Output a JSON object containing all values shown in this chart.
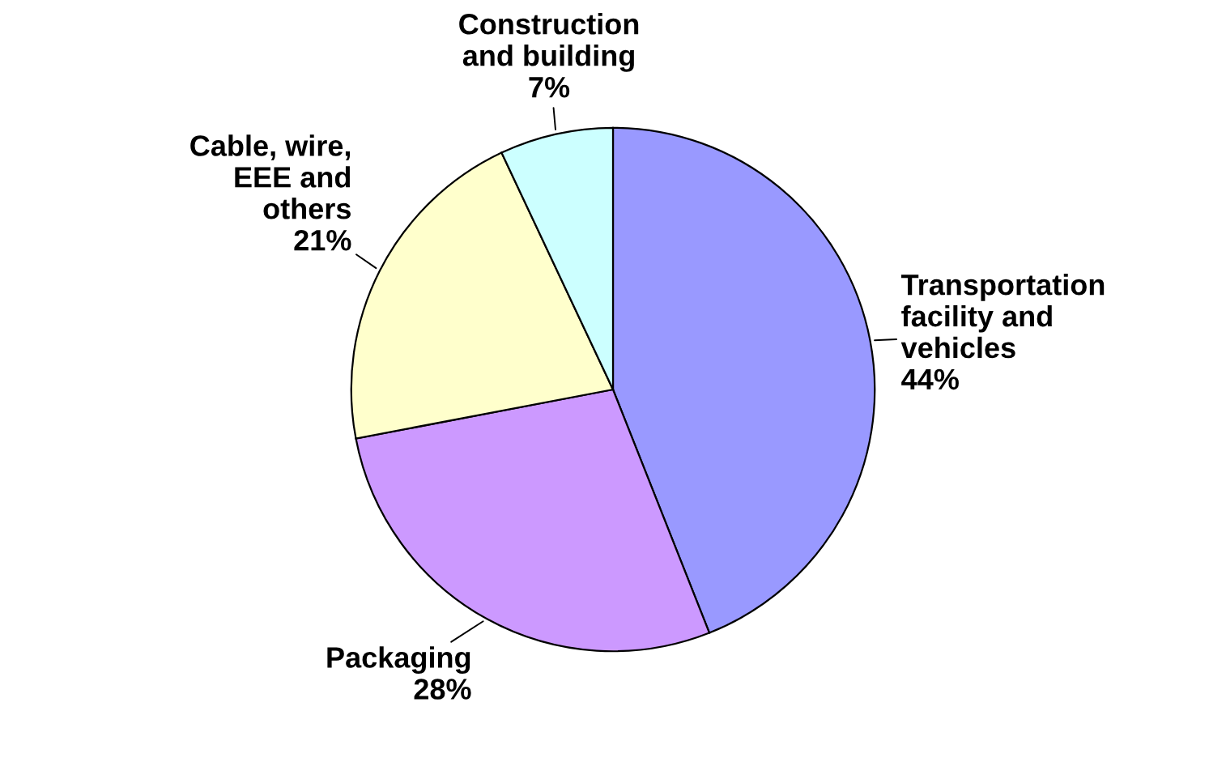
{
  "chart_data": {
    "type": "pie",
    "categories": [
      "Transportation\nfacility and\nvehicles",
      "Packaging",
      "Cable, wire,\nEEE and\nothers",
      "Construction\nand building"
    ],
    "values": [
      44,
      28,
      21,
      7
    ],
    "value_labels": [
      "44%",
      "28%",
      "21%",
      "7%"
    ],
    "colors": [
      "#9999ff",
      "#cc99ff",
      "#ffffcc",
      "#ccffff"
    ]
  }
}
